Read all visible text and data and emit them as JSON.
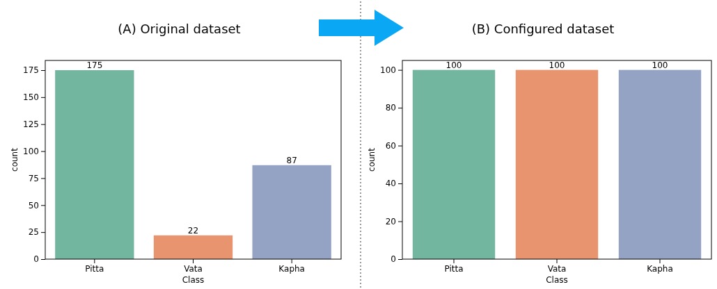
{
  "chart_data": [
    {
      "type": "bar",
      "title": "(A) Original dataset",
      "categories": [
        "Pitta",
        "Vata",
        "Kapha"
      ],
      "values": [
        175,
        22,
        87
      ],
      "colors": [
        "#72b6a0",
        "#e8956f",
        "#94a3c4"
      ],
      "ylim": [
        0,
        184
      ],
      "yticks": [
        0,
        25,
        50,
        75,
        100,
        125,
        150,
        175
      ],
      "xlabel": "Class",
      "ylabel": "count",
      "data_labels": true
    },
    {
      "type": "bar",
      "title": "(B) Configured dataset",
      "categories": [
        "Pitta",
        "Vata",
        "Kapha"
      ],
      "values": [
        100,
        100,
        100
      ],
      "colors": [
        "#72b6a0",
        "#e8956f",
        "#94a3c4"
      ],
      "ylim": [
        0,
        105
      ],
      "yticks": [
        0,
        20,
        40,
        60,
        80,
        100
      ],
      "xlabel": "Class",
      "ylabel": "count",
      "data_labels": true
    }
  ]
}
